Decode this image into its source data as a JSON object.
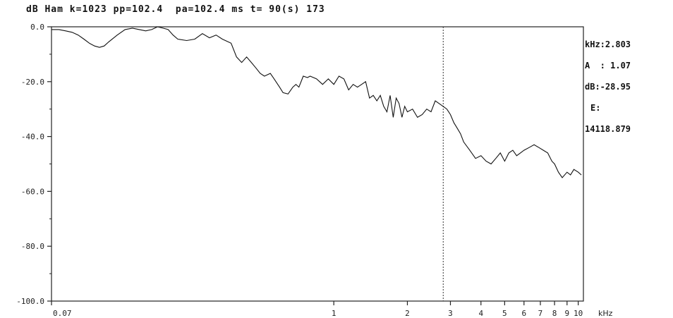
{
  "header": {
    "scale": "dB",
    "window": "Ham",
    "k": "k=1023",
    "pp": "pp=102.4",
    "pa": "pa=102.4 ms",
    "t": "t= 90(s)",
    "frame": "173"
  },
  "readout": {
    "khz_label": "kHz:2.803",
    "a_label": "A  : 1.07",
    "db_label": "dB:-28.95",
    "e_label": "E:",
    "e_value": "14118.879"
  },
  "chart_data": {
    "type": "line",
    "title": "",
    "xlabel": "kHz",
    "ylabel": "dB",
    "xscale": "log",
    "xlim": [
      0.07,
      10.5
    ],
    "ylim": [
      -100,
      0
    ],
    "grid": false,
    "cursor_x": 2.803,
    "y_ticks": [
      "0.0",
      "-20.0",
      "-40.0",
      "-60.0",
      "-80.0",
      "-100.0"
    ],
    "y_tick_values": [
      0,
      -20,
      -40,
      -60,
      -80,
      -100
    ],
    "x_ticks": [
      "0.07",
      "1",
      "2",
      "3",
      "4",
      "5",
      "6",
      "7",
      "8",
      "9",
      "10"
    ],
    "x_tick_values": [
      0.07,
      1,
      2,
      3,
      4,
      5,
      6,
      7,
      8,
      9,
      10
    ],
    "x_unit_label": "kHz",
    "series": [
      {
        "x": [
          0.07,
          0.075,
          0.08,
          0.085,
          0.09,
          0.095,
          0.1,
          0.105,
          0.11,
          0.115,
          0.12,
          0.13,
          0.14,
          0.15,
          0.16,
          0.17,
          0.18,
          0.19,
          0.2,
          0.21,
          0.22,
          0.23,
          0.25,
          0.27,
          0.29,
          0.31,
          0.33,
          0.35,
          0.38,
          0.4,
          0.42,
          0.44,
          0.46,
          0.48,
          0.5,
          0.52,
          0.55,
          0.57,
          0.6,
          0.62,
          0.65,
          0.68,
          0.7,
          0.72,
          0.75,
          0.78,
          0.8,
          0.85,
          0.9,
          0.95,
          1.0,
          1.05,
          1.1,
          1.15,
          1.2,
          1.25,
          1.3,
          1.35,
          1.4,
          1.45,
          1.5,
          1.55,
          1.6,
          1.65,
          1.7,
          1.75,
          1.8,
          1.85,
          1.9,
          1.95,
          2.0,
          2.1,
          2.2,
          2.3,
          2.4,
          2.5,
          2.6,
          2.7,
          2.8,
          2.9,
          3.0,
          3.1,
          3.2,
          3.3,
          3.4,
          3.6,
          3.8,
          4.0,
          4.2,
          4.4,
          4.6,
          4.8,
          5.0,
          5.2,
          5.4,
          5.6,
          5.8,
          6.0,
          6.3,
          6.6,
          6.9,
          7.2,
          7.5,
          7.8,
          8.0,
          8.3,
          8.6,
          9.0,
          9.3,
          9.6,
          10.0,
          10.3
        ],
        "y": [
          -1,
          -1,
          -1.5,
          -2,
          -3,
          -4.5,
          -6,
          -7,
          -7.5,
          -7,
          -5.5,
          -3,
          -1,
          -0.5,
          -1,
          -1.5,
          -1,
          0,
          -0.5,
          -1,
          -3,
          -4.5,
          -5,
          -4.5,
          -2.5,
          -4,
          -3,
          -4.5,
          -6,
          -11,
          -13,
          -11,
          -13,
          -15,
          -17,
          -18,
          -17,
          -19,
          -22,
          -24,
          -24.5,
          -22,
          -21,
          -22,
          -18,
          -18.5,
          -18,
          -19,
          -21,
          -19,
          -21,
          -18,
          -19,
          -23,
          -21,
          -22,
          -21,
          -20,
          -26,
          -25,
          -27,
          -25,
          -29,
          -31,
          -25,
          -33,
          -26,
          -28,
          -33,
          -29,
          -31,
          -30,
          -33,
          -32,
          -30,
          -31,
          -27,
          -28,
          -29,
          -30,
          -32,
          -35,
          -37,
          -39,
          -42,
          -45,
          -48,
          -47,
          -49,
          -50,
          -48,
          -46,
          -49,
          -46,
          -45,
          -47,
          -46,
          -45,
          -44,
          -43,
          -44,
          -45,
          -46,
          -49,
          -50,
          -53,
          -55,
          -53,
          -54,
          -52,
          -53,
          -54
        ]
      }
    ]
  }
}
